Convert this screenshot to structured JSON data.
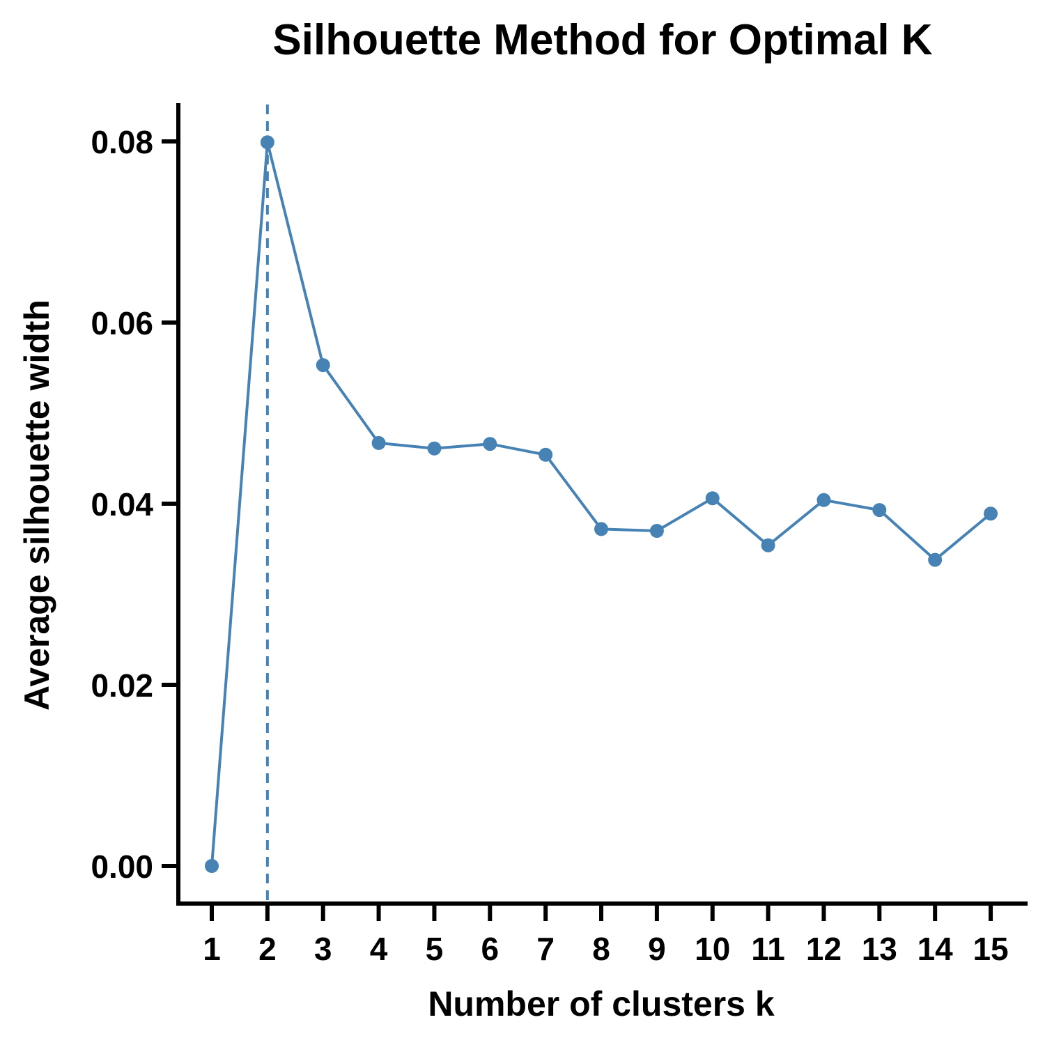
{
  "chart_data": {
    "type": "line",
    "title": "Silhouette Method for Optimal K",
    "xlabel": "Number of clusters k",
    "ylabel": "Average silhouette width",
    "categories": [
      "1",
      "2",
      "3",
      "4",
      "5",
      "6",
      "7",
      "8",
      "9",
      "10",
      "11",
      "12",
      "13",
      "14",
      "15"
    ],
    "series": [
      {
        "values": [
          0.0,
          0.0799,
          0.0553,
          0.0467,
          0.0461,
          0.0466,
          0.0454,
          0.0372,
          0.037,
          0.0406,
          0.0354,
          0.0404,
          0.0393,
          0.0338,
          0.0389
        ]
      }
    ],
    "yticks": [
      0.0,
      0.02,
      0.04,
      0.06,
      0.08
    ],
    "ytick_labels": [
      "0.00",
      "0.02",
      "0.04",
      "0.06",
      "0.08"
    ],
    "ylim": [
      -0.0038,
      0.0838
    ],
    "optimal_k": 2,
    "grid": false,
    "colors": {
      "series": "#4682B4",
      "axis": "#000000"
    }
  }
}
